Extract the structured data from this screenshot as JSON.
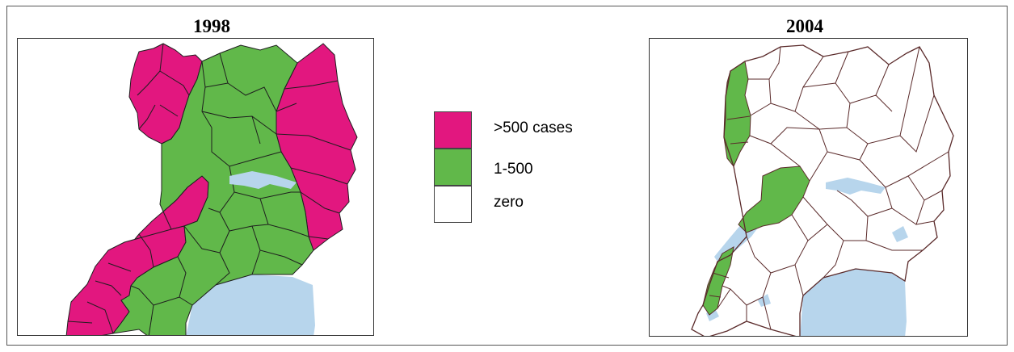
{
  "maps": [
    {
      "year": "1998"
    },
    {
      "year": "2004"
    }
  ],
  "legend": [
    {
      "label": ">500 cases",
      "color": "#e2177f"
    },
    {
      "label": "1-500",
      "color": "#61b84a"
    },
    {
      "label": "zero",
      "color": "#ffffff"
    }
  ],
  "colors": {
    "water": "#b7d5ec",
    "border_1998": "#1e1e1e",
    "border_2004": "#5a2a2a"
  }
}
